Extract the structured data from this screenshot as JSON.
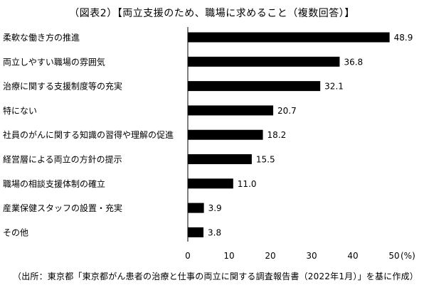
{
  "chart_data": {
    "type": "bar",
    "orientation": "horizontal",
    "title": "（図表2）【両立支援のため、職場に求めること（複数回答）】",
    "categories": [
      "柔軟な働き方の推進",
      "両立しやすい職場の雰囲気",
      "治療に関する支援制度等の充実",
      "特にない",
      "社員のがんに関する知識の習得や理解の促進",
      "経営層による両立の方針の提示",
      "職場の相談支援体制の確立",
      "産業保健スタッフの設置・充実",
      "その他"
    ],
    "values": [
      48.9,
      36.8,
      32.1,
      20.7,
      18.2,
      15.5,
      11.0,
      3.9,
      3.8
    ],
    "value_labels": [
      "48.9",
      "36.8",
      "32.1",
      "20.7",
      "18.2",
      "15.5",
      "11.0",
      "3.9",
      "3.8"
    ],
    "x_ticks": [
      "0",
      "10",
      "20",
      "30",
      "40",
      "50"
    ],
    "x_unit": "(%)",
    "xlim": [
      0,
      50
    ],
    "bar_color": "#000000",
    "grid": false,
    "legend": "none"
  },
  "source": "（出所：東京都「東京都がん患者の治療と仕事の両立に関する調査報告書（2022年1月）」を基に作成）"
}
